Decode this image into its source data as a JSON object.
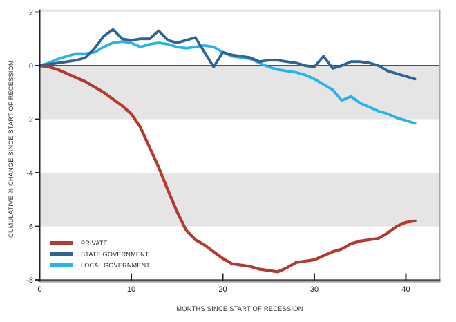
{
  "chart_data": {
    "type": "line",
    "title": "",
    "xlabel": "MONTHS SINCE START OF RECESSION",
    "ylabel": "CUMULATIVE % CHANGE SINCE START OF RECESSION",
    "x": [
      0,
      1,
      2,
      3,
      4,
      5,
      6,
      7,
      8,
      9,
      10,
      11,
      12,
      13,
      14,
      15,
      16,
      17,
      18,
      19,
      20,
      21,
      22,
      23,
      24,
      25,
      26,
      27,
      28,
      29,
      30,
      31,
      32,
      33,
      34,
      35,
      36,
      37,
      38,
      39,
      40,
      41
    ],
    "series": [
      {
        "name": "PRIVATE",
        "color": "#b5392e",
        "values": [
          0,
          -0.05,
          -0.15,
          -0.3,
          -0.45,
          -0.6,
          -0.8,
          -1.0,
          -1.25,
          -1.5,
          -1.8,
          -2.3,
          -3.05,
          -3.8,
          -4.65,
          -5.45,
          -6.15,
          -6.5,
          -6.7,
          -6.95,
          -7.2,
          -7.4,
          -7.45,
          -7.5,
          -7.6,
          -7.65,
          -7.7,
          -7.55,
          -7.35,
          -7.3,
          -7.25,
          -7.1,
          -6.95,
          -6.85,
          -6.65,
          -6.55,
          -6.5,
          -6.45,
          -6.25,
          -6.0,
          -5.85,
          -5.8
        ]
      },
      {
        "name": "STATE GOVERNMENT",
        "color": "#2d6494",
        "values": [
          0,
          0.05,
          0.1,
          0.15,
          0.2,
          0.3,
          0.65,
          1.1,
          1.35,
          1.0,
          0.95,
          1.0,
          1.0,
          1.3,
          0.95,
          0.85,
          0.95,
          1.05,
          0.5,
          -0.05,
          0.5,
          0.4,
          0.35,
          0.3,
          0.15,
          0.2,
          0.2,
          0.15,
          0.1,
          0.0,
          -0.05,
          0.35,
          -0.1,
          0.0,
          0.15,
          0.15,
          0.1,
          0.0,
          -0.2,
          -0.3,
          -0.4,
          -0.5
        ]
      },
      {
        "name": "LOCAL GOVERNMENT",
        "color": "#24b4ec",
        "values": [
          0,
          0.1,
          0.25,
          0.35,
          0.45,
          0.45,
          0.5,
          0.7,
          0.85,
          0.9,
          0.85,
          0.7,
          0.8,
          0.85,
          0.8,
          0.7,
          0.65,
          0.7,
          0.75,
          0.7,
          0.5,
          0.35,
          0.3,
          0.25,
          0.1,
          -0.05,
          -0.15,
          -0.2,
          -0.25,
          -0.35,
          -0.5,
          -0.7,
          -0.9,
          -1.3,
          -1.15,
          -1.4,
          -1.55,
          -1.7,
          -1.8,
          -1.95,
          -2.05,
          -2.15
        ]
      }
    ],
    "xlim": [
      0,
      43.7
    ],
    "ylim": [
      -8,
      2.1
    ],
    "x_ticks": [
      0,
      10,
      20,
      30,
      40
    ],
    "x_tick_labels": [
      "0",
      "10",
      "20",
      "30",
      "40"
    ],
    "y_ticks": [
      2,
      0,
      -2,
      -4,
      -6,
      -8
    ],
    "y_tick_labels": [
      "2",
      "0",
      "-2",
      "-4",
      "-6",
      "-8"
    ],
    "shaded_bands": [
      [
        4,
        2
      ],
      [
        0,
        -2
      ],
      [
        -4,
        -6
      ]
    ],
    "band_color": "#e5e5e5",
    "zero_line": 0,
    "grid": "off",
    "legend_position": "inside-bottom-left"
  }
}
